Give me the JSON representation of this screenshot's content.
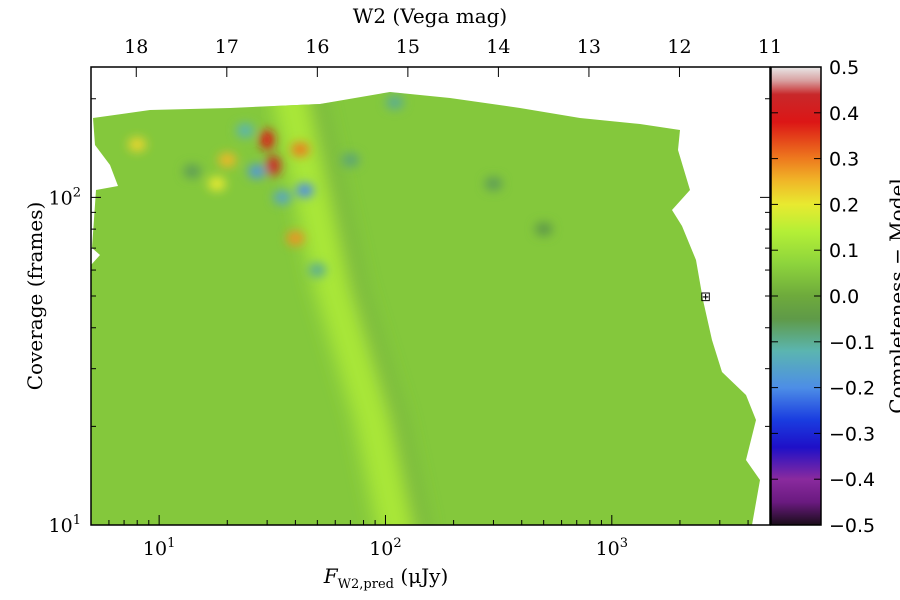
{
  "chart_data": {
    "type": "heatmap",
    "xlabel_main": "F",
    "xlabel_sub": "W2,pred",
    "xlabel_unit": " (μJy)",
    "ylabel": "Coverage (frames)",
    "top_xlabel": "W2 (Vega mag)",
    "colorbar_label": "Completeness − Model",
    "x_scale": "log",
    "y_scale": "log",
    "xlim": [
      5,
      5000
    ],
    "ylim": [
      10,
      250
    ],
    "top_xlim_mag": [
      18.5,
      11
    ],
    "clim": [
      -0.5,
      0.5
    ],
    "x_ticks": [
      {
        "value": 10,
        "base": "10",
        "exp": "1"
      },
      {
        "value": 100,
        "base": "10",
        "exp": "2"
      },
      {
        "value": 1000,
        "base": "10",
        "exp": "3"
      }
    ],
    "y_ticks": [
      {
        "value": 10,
        "base": "10",
        "exp": "1"
      },
      {
        "value": 100,
        "base": "10",
        "exp": "2"
      }
    ],
    "top_ticks": [
      {
        "value": 18,
        "label": "18"
      },
      {
        "value": 17,
        "label": "17"
      },
      {
        "value": 16,
        "label": "16"
      },
      {
        "value": 15,
        "label": "15"
      },
      {
        "value": 14,
        "label": "14"
      },
      {
        "value": 13,
        "label": "13"
      },
      {
        "value": 12,
        "label": "12"
      },
      {
        "value": 11,
        "label": "11"
      }
    ],
    "colorbar_ticks": [
      {
        "value": 0.5,
        "label": "0.5"
      },
      {
        "value": 0.4,
        "label": "0.4"
      },
      {
        "value": 0.3,
        "label": "0.3"
      },
      {
        "value": 0.2,
        "label": "0.2"
      },
      {
        "value": 0.1,
        "label": "0.1"
      },
      {
        "value": 0.0,
        "label": "0.0"
      },
      {
        "value": -0.1,
        "label": "−0.1"
      },
      {
        "value": -0.2,
        "label": "−0.2"
      },
      {
        "value": -0.3,
        "label": "−0.3"
      },
      {
        "value": -0.4,
        "label": "−0.4"
      },
      {
        "value": -0.5,
        "label": "−0.5"
      }
    ],
    "colormap": [
      {
        "v": -0.5,
        "color": "#1a0d1a"
      },
      {
        "v": -0.45,
        "color": "#6a1a80"
      },
      {
        "v": -0.4,
        "color": "#8a2a9e"
      },
      {
        "v": -0.33,
        "color": "#1e10c8"
      },
      {
        "v": -0.27,
        "color": "#1a3de0"
      },
      {
        "v": -0.2,
        "color": "#4d8ee6"
      },
      {
        "v": -0.12,
        "color": "#5bb5b0"
      },
      {
        "v": -0.05,
        "color": "#5f9a48"
      },
      {
        "v": 0.0,
        "color": "#6eaa3c"
      },
      {
        "v": 0.07,
        "color": "#8dd43c"
      },
      {
        "v": 0.14,
        "color": "#b4ef36"
      },
      {
        "v": 0.2,
        "color": "#e8ea30"
      },
      {
        "v": 0.25,
        "color": "#f0b828"
      },
      {
        "v": 0.3,
        "color": "#ee7a1e"
      },
      {
        "v": 0.38,
        "color": "#dc1616"
      },
      {
        "v": 0.44,
        "color": "#c8282a"
      },
      {
        "v": 0.47,
        "color": "#d8a0a0"
      },
      {
        "v": 0.5,
        "color": "#e8e8e8"
      }
    ],
    "base_value": 0.05,
    "ridge_band": {
      "description_points": [
        [
          37,
          250
        ],
        [
          60,
          55
        ],
        [
          90,
          22
        ],
        [
          115,
          10
        ]
      ],
      "value": 0.12,
      "shadow_value": -0.03
    },
    "features": [
      {
        "x": 32,
        "y": 125,
        "value": 0.42
      },
      {
        "x": 30,
        "y": 150,
        "value": 0.38
      },
      {
        "x": 27,
        "y": 120,
        "value": -0.18
      },
      {
        "x": 24,
        "y": 160,
        "value": -0.12
      },
      {
        "x": 35,
        "y": 100,
        "value": -0.15
      },
      {
        "x": 42,
        "y": 140,
        "value": 0.3
      },
      {
        "x": 20,
        "y": 130,
        "value": 0.25
      },
      {
        "x": 40,
        "y": 75,
        "value": 0.28
      },
      {
        "x": 44,
        "y": 105,
        "value": -0.2
      },
      {
        "x": 50,
        "y": 60,
        "value": -0.1
      },
      {
        "x": 8,
        "y": 145,
        "value": 0.22
      },
      {
        "x": 14,
        "y": 120,
        "value": -0.06
      },
      {
        "x": 18,
        "y": 110,
        "value": 0.2
      },
      {
        "x": 70,
        "y": 130,
        "value": -0.08
      },
      {
        "x": 110,
        "y": 195,
        "value": -0.1
      },
      {
        "x": 300,
        "y": 110,
        "value": -0.06
      },
      {
        "x": 500,
        "y": 80,
        "value": -0.05
      }
    ],
    "marker": {
      "x": 2600,
      "y": 50,
      "symbol": "⊞"
    }
  }
}
